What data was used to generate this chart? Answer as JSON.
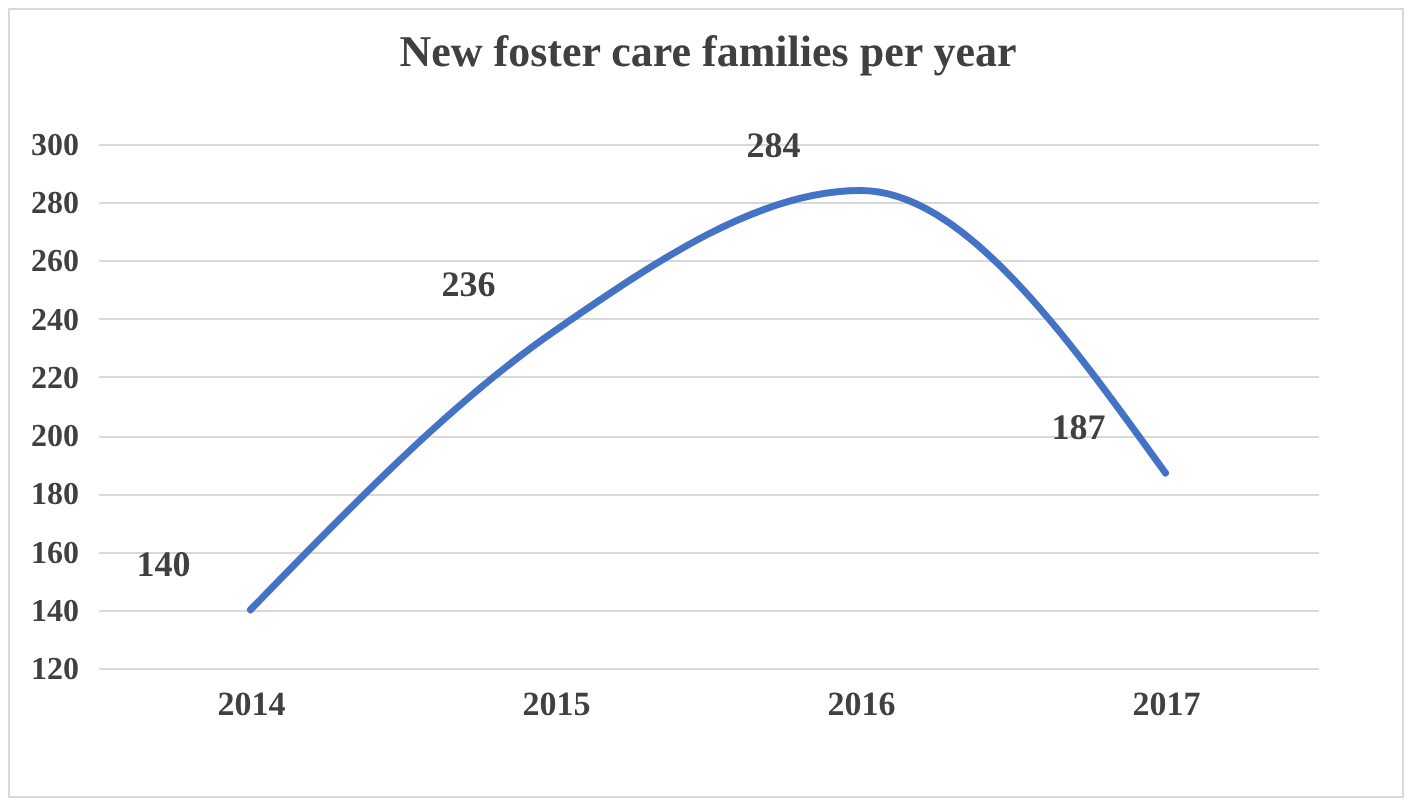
{
  "chart_data": {
    "type": "line",
    "title": "New foster care families per year",
    "categories": [
      "2014",
      "2015",
      "2016",
      "2017"
    ],
    "values": [
      140,
      236,
      284,
      187
    ],
    "color": "#4472c4",
    "ylim": [
      120,
      300
    ],
    "yticks": [
      120,
      140,
      160,
      180,
      200,
      220,
      240,
      260,
      280,
      300
    ],
    "grid": "y",
    "data_labels": true
  }
}
